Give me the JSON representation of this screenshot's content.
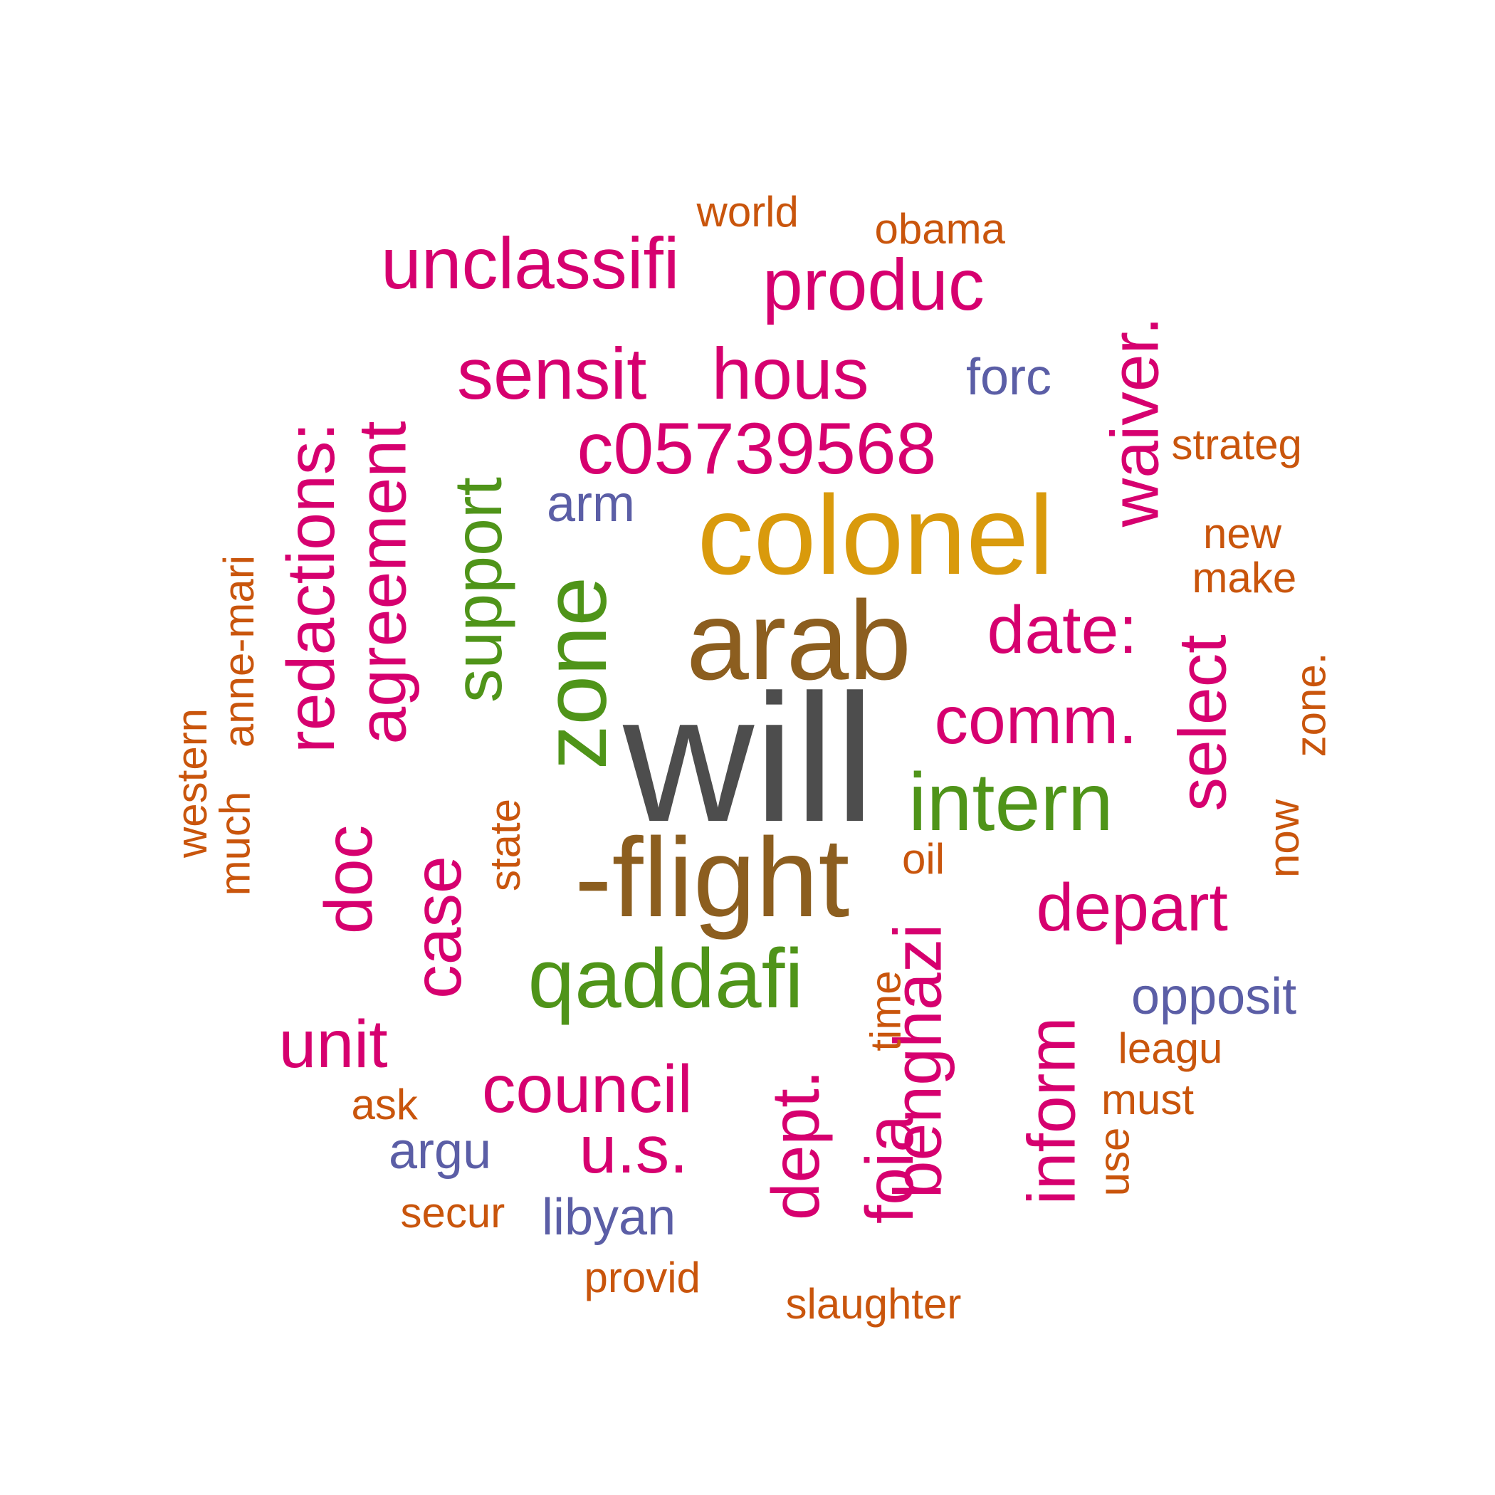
{
  "palette": {
    "dark_gray": "#4d4d4d",
    "brown": "#8c5e1f",
    "gold": "#d99a0c",
    "green": "#4f9419",
    "magenta": "#d6006f",
    "purple": "#5b5ea6",
    "orange": "#c9550c"
  },
  "words": [
    {
      "text": "will",
      "color": "dark_gray",
      "rotated": false
    },
    {
      "text": "arab",
      "color": "brown",
      "rotated": false
    },
    {
      "text": "-flight",
      "color": "brown",
      "rotated": false
    },
    {
      "text": "colonel",
      "color": "gold",
      "rotated": false
    },
    {
      "text": "zone",
      "color": "green",
      "rotated": true
    },
    {
      "text": "support",
      "color": "green",
      "rotated": true
    },
    {
      "text": "qaddafi",
      "color": "green",
      "rotated": false
    },
    {
      "text": "intern",
      "color": "green",
      "rotated": false
    },
    {
      "text": "unclassifi",
      "color": "magenta",
      "rotated": false
    },
    {
      "text": "produc",
      "color": "magenta",
      "rotated": false
    },
    {
      "text": "sensit",
      "color": "magenta",
      "rotated": false
    },
    {
      "text": "hous",
      "color": "magenta",
      "rotated": false
    },
    {
      "text": "c05739568",
      "color": "magenta",
      "rotated": false
    },
    {
      "text": "redactions:",
      "color": "magenta",
      "rotated": true
    },
    {
      "text": "agreement",
      "color": "magenta",
      "rotated": true
    },
    {
      "text": "waiver.",
      "color": "magenta",
      "rotated": true
    },
    {
      "text": "date:",
      "color": "magenta",
      "rotated": false
    },
    {
      "text": "comm.",
      "color": "magenta",
      "rotated": false
    },
    {
      "text": "select",
      "color": "magenta",
      "rotated": true
    },
    {
      "text": "depart",
      "color": "magenta",
      "rotated": false
    },
    {
      "text": "doc",
      "color": "magenta",
      "rotated": true
    },
    {
      "text": "case",
      "color": "magenta",
      "rotated": true
    },
    {
      "text": "benghazi",
      "color": "magenta",
      "rotated": true
    },
    {
      "text": "unit",
      "color": "magenta",
      "rotated": false
    },
    {
      "text": "council",
      "color": "magenta",
      "rotated": false
    },
    {
      "text": "u.s.",
      "color": "magenta",
      "rotated": false
    },
    {
      "text": "dept.",
      "color": "magenta",
      "rotated": true
    },
    {
      "text": "foia",
      "color": "magenta",
      "rotated": true
    },
    {
      "text": "inform",
      "color": "magenta",
      "rotated": true
    },
    {
      "text": "forc",
      "color": "purple",
      "rotated": false
    },
    {
      "text": "arm",
      "color": "purple",
      "rotated": false
    },
    {
      "text": "opposit",
      "color": "purple",
      "rotated": false
    },
    {
      "text": "argu",
      "color": "purple",
      "rotated": false
    },
    {
      "text": "libyan",
      "color": "purple",
      "rotated": false
    },
    {
      "text": "world",
      "color": "orange",
      "rotated": false
    },
    {
      "text": "obama",
      "color": "orange",
      "rotated": false
    },
    {
      "text": "strateg",
      "color": "orange",
      "rotated": false
    },
    {
      "text": "new",
      "color": "orange",
      "rotated": false
    },
    {
      "text": "make",
      "color": "orange",
      "rotated": false
    },
    {
      "text": "zone.",
      "color": "orange",
      "rotated": true
    },
    {
      "text": "now",
      "color": "orange",
      "rotated": true
    },
    {
      "text": "anne-mari",
      "color": "orange",
      "rotated": true
    },
    {
      "text": "western",
      "color": "orange",
      "rotated": true
    },
    {
      "text": "much",
      "color": "orange",
      "rotated": true
    },
    {
      "text": "state",
      "color": "orange",
      "rotated": true
    },
    {
      "text": "oil",
      "color": "orange",
      "rotated": false
    },
    {
      "text": "time",
      "color": "orange",
      "rotated": true
    },
    {
      "text": "leagu",
      "color": "orange",
      "rotated": false
    },
    {
      "text": "must",
      "color": "orange",
      "rotated": false
    },
    {
      "text": "use",
      "color": "orange",
      "rotated": true
    },
    {
      "text": "ask",
      "color": "orange",
      "rotated": false
    },
    {
      "text": "secur",
      "color": "orange",
      "rotated": false
    },
    {
      "text": "provid",
      "color": "orange",
      "rotated": false
    },
    {
      "text": "slaughter",
      "color": "orange",
      "rotated": false
    }
  ]
}
